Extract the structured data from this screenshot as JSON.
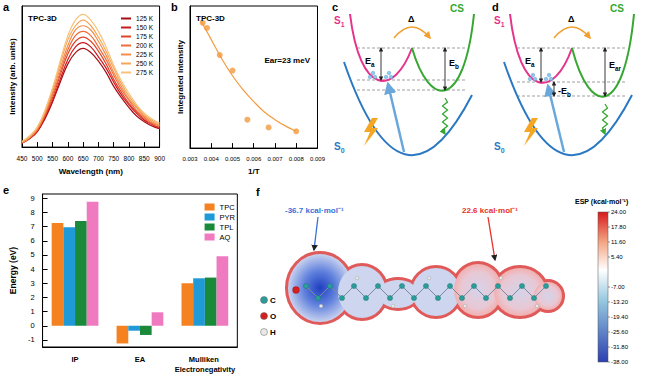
{
  "chart_data": [
    {
      "panel": "a",
      "type": "line",
      "title": "TPC-3D",
      "x_label": "Wavelength (nm)",
      "y_label": "Intensity (arb. units)",
      "x": [
        450,
        475,
        500,
        525,
        550,
        575,
        600,
        625,
        650,
        675,
        700,
        725,
        750,
        775,
        800,
        825,
        850,
        875,
        900
      ],
      "series": [
        {
          "name": "125 K",
          "color": "#a50f15",
          "values": [
            0.03,
            0.06,
            0.11,
            0.2,
            0.32,
            0.46,
            0.59,
            0.67,
            0.7,
            0.67,
            0.61,
            0.53,
            0.43,
            0.35,
            0.28,
            0.22,
            0.18,
            0.15,
            0.13
          ]
        },
        {
          "name": "150 K",
          "color": "#cb181d",
          "values": [
            0.03,
            0.06,
            0.11,
            0.21,
            0.33,
            0.48,
            0.62,
            0.71,
            0.74,
            0.71,
            0.64,
            0.56,
            0.46,
            0.37,
            0.3,
            0.24,
            0.19,
            0.16,
            0.13
          ]
        },
        {
          "name": "175 K",
          "color": "#e0452a",
          "values": [
            0.03,
            0.06,
            0.12,
            0.22,
            0.35,
            0.51,
            0.66,
            0.75,
            0.78,
            0.75,
            0.68,
            0.59,
            0.48,
            0.39,
            0.31,
            0.25,
            0.2,
            0.16,
            0.14
          ]
        },
        {
          "name": "200 K",
          "color": "#ef6c3a",
          "values": [
            0.03,
            0.07,
            0.12,
            0.23,
            0.37,
            0.53,
            0.69,
            0.79,
            0.82,
            0.79,
            0.71,
            0.62,
            0.51,
            0.41,
            0.33,
            0.26,
            0.21,
            0.17,
            0.15
          ]
        },
        {
          "name": "225 K",
          "color": "#f48c4a",
          "values": [
            0.03,
            0.07,
            0.13,
            0.24,
            0.39,
            0.56,
            0.72,
            0.83,
            0.86,
            0.83,
            0.75,
            0.65,
            0.53,
            0.43,
            0.34,
            0.28,
            0.22,
            0.18,
            0.15
          ]
        },
        {
          "name": "250 K",
          "color": "#f5a65a",
          "values": [
            0.04,
            0.07,
            0.14,
            0.25,
            0.41,
            0.59,
            0.76,
            0.86,
            0.9,
            0.86,
            0.78,
            0.68,
            0.56,
            0.45,
            0.36,
            0.29,
            0.23,
            0.19,
            0.16
          ]
        },
        {
          "name": "275 K",
          "color": "#f7c27a",
          "values": [
            0.04,
            0.08,
            0.14,
            0.26,
            0.42,
            0.61,
            0.79,
            0.9,
            0.94,
            0.9,
            0.82,
            0.71,
            0.58,
            0.47,
            0.38,
            0.3,
            0.24,
            0.2,
            0.17
          ]
        }
      ],
      "xlim": [
        450,
        900
      ],
      "xticks": [
        450,
        500,
        550,
        600,
        650,
        700,
        750,
        800,
        850,
        900
      ],
      "ylim": [
        0,
        1
      ],
      "tick_labels": "x",
      "legend": "upper right"
    },
    {
      "panel": "b",
      "type": "scatter",
      "title": "TPC-3D",
      "annotation": "Ear=23 meV",
      "x_label": "1/T",
      "y_label": "Integrated Intensity",
      "series": [
        {
          "type": "scatter",
          "marker": "circle",
          "color": "#f39a3e",
          "x": [
            0.0036,
            0.0038,
            0.0044,
            0.005,
            0.0057,
            0.0067,
            0.008
          ],
          "values": [
            0.97,
            0.93,
            0.72,
            0.6,
            0.22,
            0.16,
            0.13
          ]
        },
        {
          "type": "line",
          "color": "#f39a3e",
          "x": [
            0.0035,
            0.004,
            0.0045,
            0.005,
            0.0055,
            0.006,
            0.0065,
            0.007,
            0.0075,
            0.008
          ],
          "values": [
            0.99,
            0.84,
            0.69,
            0.56,
            0.45,
            0.36,
            0.28,
            0.22,
            0.17,
            0.13
          ]
        }
      ],
      "xlim": [
        0.003,
        0.009
      ],
      "xticks": [
        0.003,
        0.004,
        0.005,
        0.006,
        0.007,
        0.008,
        0.009
      ],
      "ylim": [
        0,
        1.1
      ],
      "tick_labels": "x"
    },
    {
      "panel": "e",
      "type": "bar",
      "y_label": "Energy (eV)",
      "categories": [
        "IP",
        "EA",
        "Mulliken Electronegativity"
      ],
      "series": [
        {
          "name": "TPC",
          "color": "#f58220",
          "values": [
            7.25,
            -1.25,
            3.0
          ]
        },
        {
          "name": "PYR",
          "color": "#1f9ad6",
          "values": [
            6.95,
            -0.35,
            3.35
          ]
        },
        {
          "name": "TPL",
          "color": "#1a8a3a",
          "values": [
            7.4,
            -0.65,
            3.4
          ]
        },
        {
          "name": "AQ",
          "color": "#f07ac0",
          "values": [
            8.75,
            0.95,
            4.9
          ]
        }
      ],
      "ylim": [
        -1.5,
        9.3
      ],
      "yticks": [
        -1,
        0,
        1,
        2,
        3,
        4,
        5,
        6,
        7,
        8,
        9
      ],
      "legend": "upper right"
    }
  ],
  "diagrams": [
    {
      "panel": "c",
      "states": {
        "s1": {
          "main": "S",
          "sub": "1"
        },
        "s0": {
          "main": "S",
          "sub": "0"
        },
        "cs": {
          "main": "CS"
        }
      },
      "heat": "Δ",
      "energies": [
        {
          "main": "E",
          "sub": "a"
        },
        {
          "main": "E",
          "sub": "b"
        }
      ]
    },
    {
      "panel": "d",
      "states": {
        "s1": {
          "main": "S",
          "sub": "1"
        },
        "s0": {
          "main": "S",
          "sub": "0"
        },
        "cs": {
          "main": "CS"
        }
      },
      "heat": "Δ",
      "energies": [
        {
          "main": "E",
          "sub": "a"
        },
        {
          "main": "-E",
          "sub": "b"
        },
        {
          "main": "E",
          "sub": "ar"
        }
      ]
    }
  ],
  "esp_map": {
    "panel": "f",
    "labels": [
      {
        "text": "-36.7 kcal·mol⁻¹",
        "color": "#3a6fd8"
      },
      {
        "text": "22.6 kcal·mol⁻¹",
        "color": "#e8302a"
      }
    ],
    "atoms": [
      {
        "name": "C",
        "color": "#2a9d9a"
      },
      {
        "name": "O",
        "color": "#d42020"
      },
      {
        "name": "H",
        "color": "#e8e8e8"
      }
    ],
    "colorbar": {
      "title": "ESP (kcal·mol⁻¹)",
      "range": [
        -38,
        24
      ],
      "ticks": [
        {
          "value": 24,
          "label": "24.00"
        },
        {
          "value": 17.8,
          "label": "17.80"
        },
        {
          "value": 11.6,
          "label": "11.60"
        },
        {
          "value": 5.4,
          "label": "5.40"
        },
        {
          "value": -7,
          "label": "-7.00"
        },
        {
          "value": -13.2,
          "label": "-13.20"
        },
        {
          "value": -19.4,
          "label": "-19.40"
        },
        {
          "value": -25.6,
          "label": "-25.60"
        },
        {
          "value": -31.8,
          "label": "-31.80"
        },
        {
          "value": -38,
          "label": "-38.00"
        }
      ]
    }
  }
}
